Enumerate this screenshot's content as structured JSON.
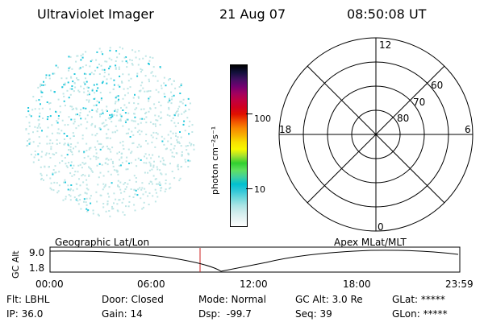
{
  "header": {
    "instrument": "Ultraviolet Imager",
    "date": "21 Aug 07",
    "time": "08:50:08 UT"
  },
  "colorbar": {
    "label": "photon cm⁻²s⁻¹",
    "tick_labels": [
      "100",
      "10"
    ],
    "colors": [
      "#ffffff",
      "#e8f4f4",
      "#cfecec",
      "#a8e4e4",
      "#6fd8dc",
      "#34c8d8",
      "#00c0d0",
      "#40d0a0",
      "#60e060",
      "#30d030",
      "#a0e030",
      "#f8f800",
      "#f8e000",
      "#f8b000",
      "#f88800",
      "#f05000",
      "#e01000",
      "#d00020",
      "#c00040",
      "#a00060",
      "#700070",
      "#401060",
      "#10103a",
      "#000000"
    ]
  },
  "polar": {
    "lat_labels": [
      "80",
      "70",
      "60"
    ],
    "mlt_labels": {
      "top": "12",
      "left": "18",
      "right": "6",
      "bottom": "0"
    }
  },
  "timeline": {
    "y_axis_label": "GC Alt",
    "y_ticks": [
      "9.0",
      "1.8"
    ],
    "left_label": "Geographic Lat/Lon",
    "right_label": "Apex MLat/MLT",
    "x_ticks": [
      "00:00",
      "06:00",
      "12:00",
      "18:00",
      "23:59"
    ]
  },
  "status": {
    "row1": [
      "Flt: LBHL",
      "Door: Closed",
      "Mode: Normal",
      "GC Alt: 3.0 Re",
      "GLat: *****"
    ],
    "row2": [
      "IP: 36.0",
      "Gain: 14",
      "Dsp:  -99.7",
      "Seq: 39",
      "GLon: *****"
    ]
  },
  "colors": {
    "marker": "#cc2222",
    "speckle_light": "#bfe6e6",
    "speckle_bright": "#22c8dc"
  }
}
